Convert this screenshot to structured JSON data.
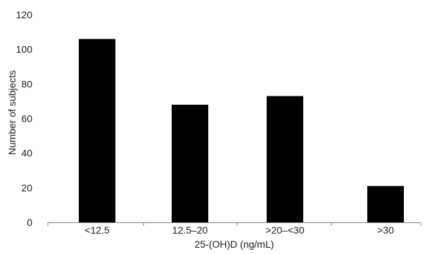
{
  "chart_data": {
    "type": "bar",
    "categories": [
      "<12.5",
      "12.5–20",
      ">20–<30",
      ">30"
    ],
    "values": [
      106,
      68,
      73,
      21
    ],
    "title": "",
    "xlabel": "25-(OH)D (ng/mL)",
    "ylabel": "Number of subjects",
    "ylim": [
      0,
      120
    ],
    "yticks": [
      0,
      20,
      40,
      60,
      80,
      100,
      120
    ],
    "grid": false,
    "legend": "none",
    "bar_color": "#000000",
    "axis_color": "#7f7f7f"
  }
}
